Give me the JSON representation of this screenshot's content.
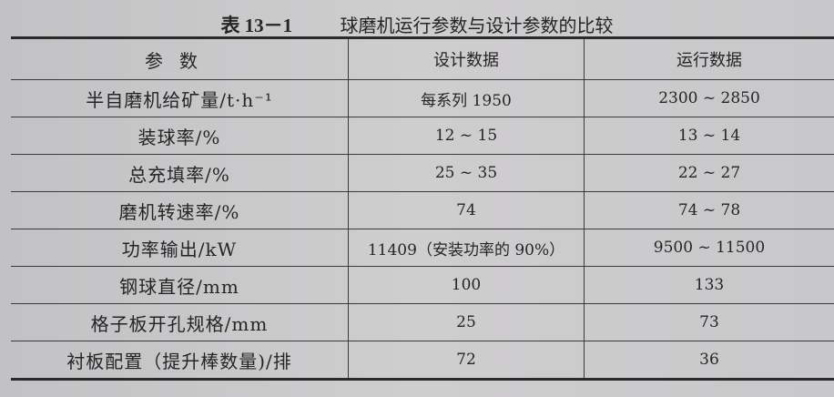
{
  "title": {
    "number": "表 13－1",
    "text": "球磨机运行参数与设计参数的比较"
  },
  "headers": [
    "参数",
    "设计数据",
    "运行数据"
  ],
  "rows": [
    [
      "半自磨机给矿量/t·h⁻¹",
      "每系列 1950",
      "2300 ~ 2850"
    ],
    [
      "装球率/%",
      "12 ~ 15",
      "13 ~ 14"
    ],
    [
      "总充填率/%",
      "25 ~ 35",
      "22 ~ 27"
    ],
    [
      "磨机转速率/%",
      "74",
      "74 ~ 78"
    ],
    [
      "功率输出/kW",
      "11409（安装功率的 90%）",
      "9500 ~ 11500"
    ],
    [
      "钢球直径/mm",
      "100",
      "133"
    ],
    [
      "格子板开孔规格/mm",
      "25",
      "73"
    ],
    [
      "衬板配置（提升棒数量)/排",
      "72",
      "36"
    ]
  ]
}
